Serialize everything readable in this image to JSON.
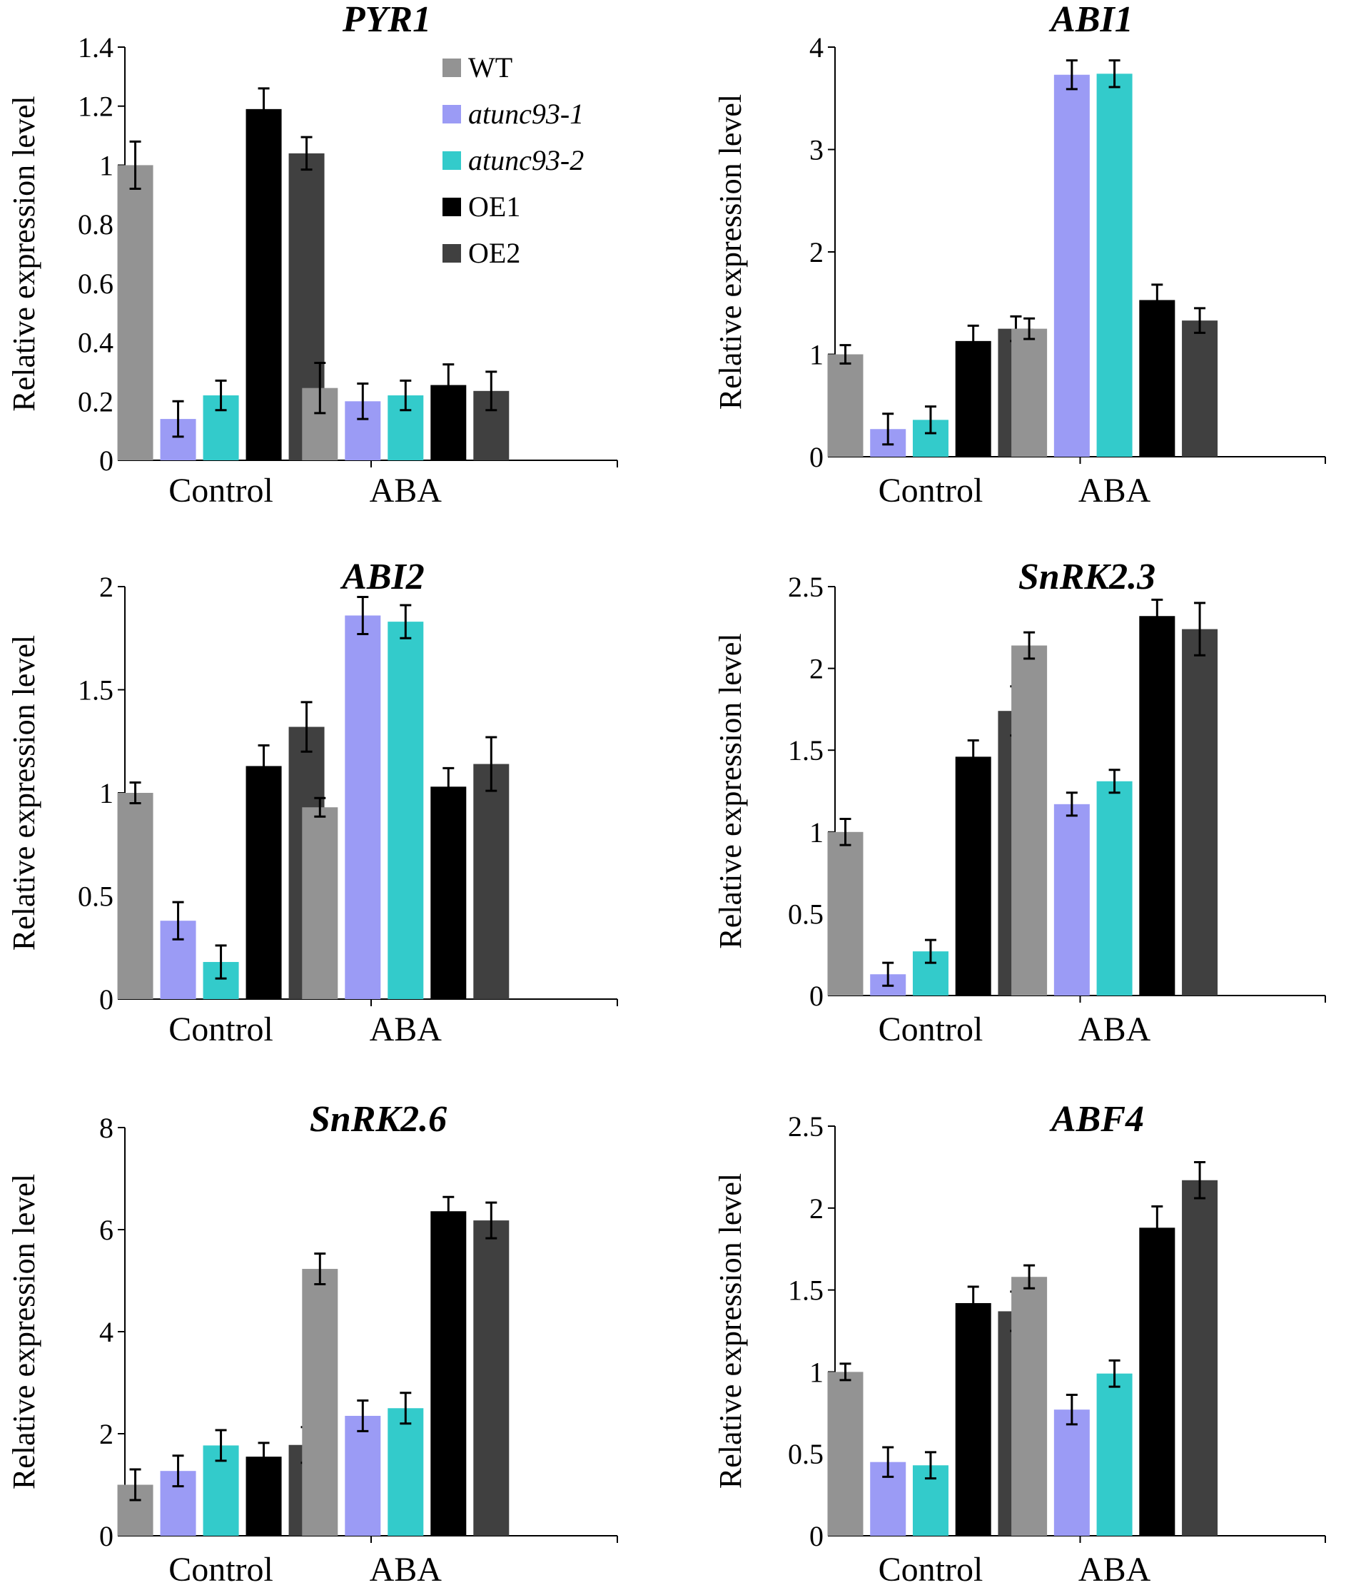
{
  "colors": {
    "WT": "#939393",
    "atunc93-1": "#9b9bf5",
    "atunc93-2": "#33cbcb",
    "OE1": "#000000",
    "OE2": "#404040"
  },
  "legend": [
    {
      "label": "WT",
      "italic": false
    },
    {
      "label": "atunc93-1",
      "italic": true
    },
    {
      "label": "atunc93-2",
      "italic": true
    },
    {
      "label": "OE1",
      "italic": false
    },
    {
      "label": "OE2",
      "italic": false
    }
  ],
  "chart_data": [
    {
      "type": "bar",
      "title": "PYR1",
      "ylabel": "Relative expression level",
      "categories": [
        "Control",
        "ABA"
      ],
      "ylim": [
        0,
        1.4
      ],
      "yticks": [
        "0",
        "0.2",
        "0.4",
        "0.6",
        "0.8",
        "1",
        "1.2",
        "1.4"
      ],
      "series": [
        {
          "name": "WT",
          "values": [
            1.0,
            0.245
          ],
          "errors": [
            0.08,
            0.085
          ]
        },
        {
          "name": "atunc93-1",
          "values": [
            0.14,
            0.2
          ],
          "errors": [
            0.06,
            0.06
          ]
        },
        {
          "name": "atunc93-2",
          "values": [
            0.22,
            0.22
          ],
          "errors": [
            0.05,
            0.05
          ]
        },
        {
          "name": "OE1",
          "values": [
            1.19,
            0.255
          ],
          "errors": [
            0.07,
            0.07
          ]
        },
        {
          "name": "OE2",
          "values": [
            1.04,
            0.235
          ],
          "errors": [
            0.055,
            0.065
          ]
        }
      ]
    },
    {
      "type": "bar",
      "title": "ABI1",
      "ylabel": "Relative expression level",
      "categories": [
        "Control",
        "ABA"
      ],
      "ylim": [
        0,
        4
      ],
      "yticks": [
        "0",
        "1",
        "2",
        "3",
        "4"
      ],
      "series": [
        {
          "name": "WT",
          "values": [
            1.0,
            1.25
          ],
          "errors": [
            0.09,
            0.1
          ]
        },
        {
          "name": "atunc93-1",
          "values": [
            0.27,
            3.73
          ],
          "errors": [
            0.15,
            0.14
          ]
        },
        {
          "name": "atunc93-2",
          "values": [
            0.36,
            3.74
          ],
          "errors": [
            0.13,
            0.13
          ]
        },
        {
          "name": "OE1",
          "values": [
            1.13,
            1.53
          ],
          "errors": [
            0.15,
            0.15
          ]
        },
        {
          "name": "OE2",
          "values": [
            1.25,
            1.33
          ],
          "errors": [
            0.12,
            0.12
          ]
        }
      ]
    },
    {
      "type": "bar",
      "title": "ABI2",
      "ylabel": "Relative expression level",
      "categories": [
        "Control",
        "ABA"
      ],
      "ylim": [
        0,
        2
      ],
      "yticks": [
        "0",
        "0.5",
        "1",
        "1.5",
        "2"
      ],
      "series": [
        {
          "name": "WT",
          "values": [
            1.0,
            0.93
          ],
          "errors": [
            0.05,
            0.045
          ]
        },
        {
          "name": "atunc93-1",
          "values": [
            0.38,
            1.86
          ],
          "errors": [
            0.09,
            0.09
          ]
        },
        {
          "name": "atunc93-2",
          "values": [
            0.18,
            1.83
          ],
          "errors": [
            0.08,
            0.08
          ]
        },
        {
          "name": "OE1",
          "values": [
            1.13,
            1.03
          ],
          "errors": [
            0.1,
            0.09
          ]
        },
        {
          "name": "OE2",
          "values": [
            1.32,
            1.14
          ],
          "errors": [
            0.12,
            0.13
          ]
        }
      ]
    },
    {
      "type": "bar",
      "title": "SnRK2.3",
      "ylabel": "Relative expression level",
      "categories": [
        "Control",
        "ABA"
      ],
      "ylim": [
        0,
        2.5
      ],
      "yticks": [
        "0",
        "0.5",
        "1",
        "1.5",
        "2",
        "2.5"
      ],
      "series": [
        {
          "name": "WT",
          "values": [
            1.0,
            2.14
          ],
          "errors": [
            0.08,
            0.08
          ]
        },
        {
          "name": "atunc93-1",
          "values": [
            0.13,
            1.17
          ],
          "errors": [
            0.07,
            0.07
          ]
        },
        {
          "name": "atunc93-2",
          "values": [
            0.27,
            1.31
          ],
          "errors": [
            0.07,
            0.07
          ]
        },
        {
          "name": "OE1",
          "values": [
            1.46,
            2.32
          ],
          "errors": [
            0.1,
            0.1
          ]
        },
        {
          "name": "OE2",
          "values": [
            1.74,
            2.24
          ],
          "errors": [
            0.15,
            0.16
          ]
        }
      ]
    },
    {
      "type": "bar",
      "title": "SnRK2.6",
      "ylabel": "Relative expression level",
      "categories": [
        "Control",
        "ABA"
      ],
      "ylim": [
        0,
        8
      ],
      "yticks": [
        "0",
        "2",
        "4",
        "6",
        "8"
      ],
      "series": [
        {
          "name": "WT",
          "values": [
            1.0,
            5.23
          ],
          "errors": [
            0.3,
            0.3
          ]
        },
        {
          "name": "atunc93-1",
          "values": [
            1.27,
            2.35
          ],
          "errors": [
            0.3,
            0.3
          ]
        },
        {
          "name": "atunc93-2",
          "values": [
            1.77,
            2.5
          ],
          "errors": [
            0.3,
            0.3
          ]
        },
        {
          "name": "OE1",
          "values": [
            1.55,
            6.36
          ],
          "errors": [
            0.27,
            0.28
          ]
        },
        {
          "name": "OE2",
          "values": [
            1.78,
            6.18
          ],
          "errors": [
            0.35,
            0.35
          ]
        }
      ]
    },
    {
      "type": "bar",
      "title": "ABF4",
      "ylabel": "Relative expression level",
      "categories": [
        "Control",
        "ABA"
      ],
      "ylim": [
        0,
        2.5
      ],
      "yticks": [
        "0",
        "0.5",
        "1",
        "1.5",
        "2",
        "2.5"
      ],
      "series": [
        {
          "name": "WT",
          "values": [
            1.0,
            1.58
          ],
          "errors": [
            0.05,
            0.07
          ]
        },
        {
          "name": "atunc93-1",
          "values": [
            0.45,
            0.77
          ],
          "errors": [
            0.09,
            0.09
          ]
        },
        {
          "name": "atunc93-2",
          "values": [
            0.43,
            0.99
          ],
          "errors": [
            0.08,
            0.08
          ]
        },
        {
          "name": "OE1",
          "values": [
            1.42,
            1.88
          ],
          "errors": [
            0.1,
            0.13
          ]
        },
        {
          "name": "OE2",
          "values": [
            1.37,
            2.17
          ],
          "errors": [
            0.12,
            0.11
          ]
        }
      ]
    }
  ]
}
